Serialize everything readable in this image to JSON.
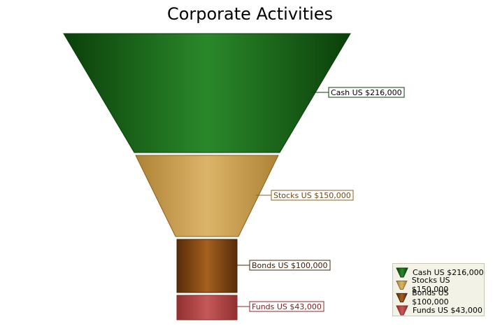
{
  "chart_data": {
    "type": "funnel",
    "title": "Corporate Activities",
    "categories": [
      "Cash",
      "Stocks",
      "Bonds",
      "Funds"
    ],
    "values": [
      216000,
      150000,
      100000,
      43000
    ],
    "labels": [
      "Cash US $216,000",
      "Stocks US $150,000",
      "Bonds US $100,000",
      "Funds US $43,000"
    ],
    "colors": [
      "#237a22",
      "#d4a85a",
      "#8a4a14",
      "#b84848"
    ],
    "legend_position": "bottom-right"
  }
}
